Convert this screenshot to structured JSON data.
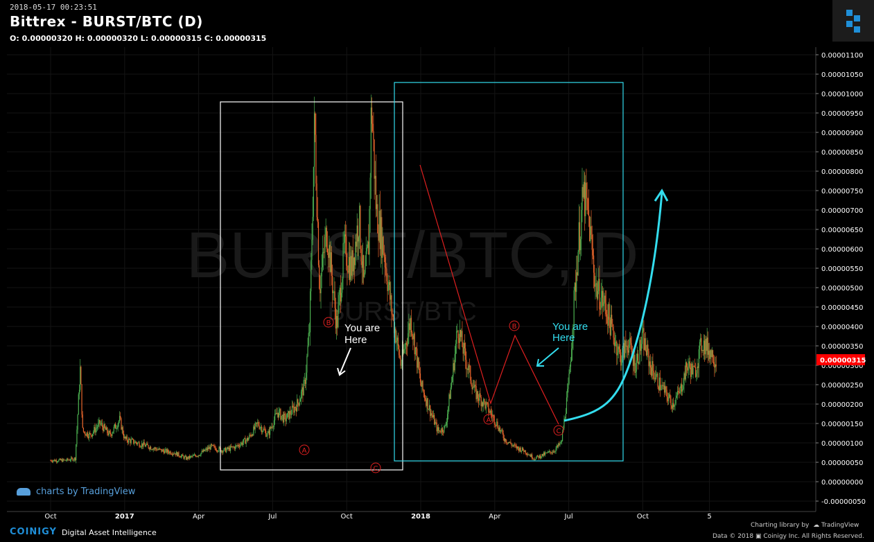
{
  "header": {
    "timestamp": "2018-05-17 00:23:51",
    "title": "Bittrex - BURST/BTC (D)",
    "ohlc": "O: 0.00000320 H: 0.00000320 L: 0.00000315 C: 0.00000315"
  },
  "watermark": {
    "main": "BURST/BTC, D",
    "sub": "BURST/BTC"
  },
  "branding": {
    "tradingview": "charts by TradingView",
    "coinigy": "COINIGY",
    "coinigy_tagline": "Digital Asset Intelligence",
    "library_credit": "Charting library by",
    "library_name": "TradingView",
    "copyright": "Data © 2018",
    "copyright_rest": "Coinigy Inc. All Rights Reserved."
  },
  "colors": {
    "up": "#4caf50",
    "down": "#e8662c",
    "price_tag": "#ff0000",
    "cyan": "#33ddee",
    "red_line": "#e02020",
    "white_box": "#ffffff"
  },
  "annotations": {
    "wave_a1": "A",
    "wave_b1": "B",
    "wave_c1": "C",
    "wave_a2": "A",
    "wave_b2": "B",
    "wave_c2": "C",
    "you_are_here_1": "You are\nHere",
    "you_are_here_2": "You are\nHere"
  },
  "chart_data": {
    "type": "candlestick",
    "title": "Bittrex - BURST/BTC (D)",
    "last_price": "0.00000315",
    "y_ticks": [
      "0.00001100",
      "0.00001050",
      "0.00001000",
      "0.00000950",
      "0.00000900",
      "0.00000850",
      "0.00000800",
      "0.00000750",
      "0.00000700",
      "0.00000650",
      "0.00000600",
      "0.00000550",
      "0.00000500",
      "0.00000450",
      "0.00000400",
      "0.00000350",
      "0.00000300",
      "0.00000250",
      "0.00000200",
      "0.00000150",
      "0.00000100",
      "0.00000050",
      "0.00000000",
      "-0.00000050"
    ],
    "y_tick_values": [
      11.0,
      10.5,
      10.0,
      9.5,
      9.0,
      8.5,
      8.0,
      7.5,
      7.0,
      6.5,
      6.0,
      5.5,
      5.0,
      4.5,
      4.0,
      3.5,
      3.0,
      2.5,
      2.0,
      1.5,
      1.0,
      0.5,
      0.0,
      -0.5
    ],
    "x_ticks": [
      "Oct",
      "2017",
      "Apr",
      "Jul",
      "Oct",
      "2018",
      "Apr",
      "Jul",
      "Oct",
      "5"
    ],
    "x_tick_months": [
      1,
      4,
      7,
      10,
      13,
      16,
      19,
      22,
      25,
      27.7
    ],
    "ylim": [
      -0.5,
      11.0
    ],
    "price_path": [
      [
        0,
        0.55
      ],
      [
        0.6,
        0.55
      ],
      [
        1.0,
        0.6
      ],
      [
        1.2,
        2.9
      ],
      [
        1.3,
        1.3
      ],
      [
        1.6,
        1.2
      ],
      [
        2.0,
        1.5
      ],
      [
        2.4,
        1.2
      ],
      [
        2.8,
        1.6
      ],
      [
        3.0,
        1.1
      ],
      [
        3.5,
        1.0
      ],
      [
        4.0,
        0.9
      ],
      [
        4.5,
        0.8
      ],
      [
        5.0,
        0.75
      ],
      [
        5.5,
        0.6
      ],
      [
        6.0,
        0.7
      ],
      [
        6.5,
        0.9
      ],
      [
        7.0,
        0.8
      ],
      [
        7.5,
        0.9
      ],
      [
        8.0,
        1.1
      ],
      [
        8.4,
        1.5
      ],
      [
        8.8,
        1.2
      ],
      [
        9.2,
        1.8
      ],
      [
        9.5,
        1.6
      ],
      [
        10.0,
        2.0
      ],
      [
        10.3,
        2.5
      ],
      [
        10.5,
        4.0
      ],
      [
        10.7,
        9.3
      ],
      [
        10.9,
        5.0
      ],
      [
        11.2,
        6.5
      ],
      [
        11.6,
        4.0
      ],
      [
        11.9,
        6.0
      ],
      [
        12.2,
        5.5
      ],
      [
        12.5,
        6.8
      ],
      [
        12.7,
        5.0
      ],
      [
        12.9,
        6.2
      ],
      [
        13.0,
        9.8
      ],
      [
        13.2,
        7.0
      ],
      [
        13.5,
        6.0
      ],
      [
        13.8,
        4.5
      ],
      [
        14.2,
        3.0
      ],
      [
        14.6,
        4.2
      ],
      [
        15.0,
        2.5
      ],
      [
        15.4,
        1.8
      ],
      [
        15.7,
        1.3
      ],
      [
        16.0,
        1.4
      ],
      [
        16.3,
        2.8
      ],
      [
        16.5,
        4.0
      ],
      [
        16.8,
        3.2
      ],
      [
        17.2,
        2.3
      ],
      [
        17.6,
        2.0
      ],
      [
        18.0,
        1.6
      ],
      [
        18.4,
        1.1
      ],
      [
        18.8,
        0.9
      ],
      [
        19.2,
        0.8
      ],
      [
        19.6,
        0.6
      ],
      [
        20.0,
        0.7
      ],
      [
        20.4,
        0.8
      ],
      [
        20.7,
        1.0
      ],
      [
        21.0,
        2.5
      ],
      [
        21.2,
        4.5
      ],
      [
        21.4,
        6.2
      ],
      [
        21.6,
        7.4
      ],
      [
        21.8,
        6.8
      ],
      [
        22.1,
        5.0
      ],
      [
        22.5,
        4.5
      ],
      [
        22.8,
        3.8
      ],
      [
        23.1,
        3.2
      ],
      [
        23.4,
        3.6
      ],
      [
        23.7,
        3.0
      ],
      [
        24.0,
        3.7
      ],
      [
        24.3,
        3.0
      ],
      [
        24.6,
        2.6
      ],
      [
        24.9,
        2.3
      ],
      [
        25.2,
        2.0
      ],
      [
        25.5,
        2.3
      ],
      [
        25.8,
        3.0
      ],
      [
        26.1,
        2.8
      ],
      [
        26.4,
        3.6
      ],
      [
        26.7,
        3.4
      ],
      [
        27.0,
        3.1
      ]
    ]
  }
}
